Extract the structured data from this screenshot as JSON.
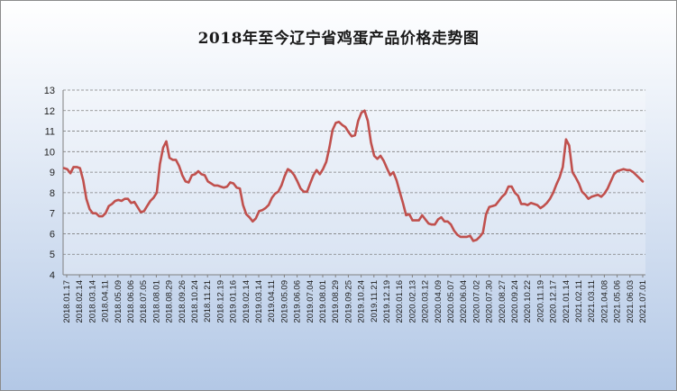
{
  "chart_data": {
    "type": "line",
    "title": "2018年至今辽宁省鸡蛋产品价格走势图",
    "xlabel": "",
    "ylabel": "",
    "ylim": [
      4,
      13
    ],
    "yticks": [
      4,
      5,
      6,
      7,
      8,
      9,
      10,
      11,
      12,
      13
    ],
    "grid": true,
    "legend": "none",
    "line_color": "#c0504d",
    "x_tick_labels": [
      "2018.01.17",
      "2018.02.14",
      "2018.03.14",
      "2018.04.11",
      "2018.05.09",
      "2018.06.06",
      "2018.07.05",
      "2018.08.01",
      "2018.08.29",
      "2018.09.26",
      "2018.10.24",
      "2018.11.21",
      "2018.12.19",
      "2019.01.16",
      "2019.02.14",
      "2019.03.14",
      "2019.04.11",
      "2019.05.09",
      "2019.06.06",
      "2019.07.04",
      "2019.08.01",
      "2019.08.29",
      "2019.09.25",
      "2019.10.24",
      "2019.11.21",
      "2019.12.19",
      "2020.01.16",
      "2020.02.13",
      "2020.03.12",
      "2020.04.09",
      "2020.05.07",
      "2020.06.04",
      "2020.07.02",
      "2020.07.30",
      "2020.08.27",
      "2020.09.24",
      "2020.10.22",
      "2020.11.19",
      "2020.12.17",
      "2021.01.14",
      "2021.02.11",
      "2021.03.11",
      "2021.04.08",
      "2021.05.06",
      "2021.06.03",
      "2021.07.01"
    ],
    "values": [
      9.2,
      9.15,
      8.95,
      9.25,
      9.25,
      9.2,
      8.6,
      7.7,
      7.2,
      7.0,
      7.0,
      6.85,
      6.85,
      7.0,
      7.35,
      7.45,
      7.6,
      7.65,
      7.6,
      7.7,
      7.7,
      7.5,
      7.55,
      7.3,
      7.05,
      7.1,
      7.35,
      7.6,
      7.75,
      8.0,
      9.4,
      10.2,
      10.5,
      9.7,
      9.6,
      9.6,
      9.3,
      8.85,
      8.55,
      8.5,
      8.85,
      8.9,
      9.05,
      8.9,
      8.85,
      8.55,
      8.45,
      8.35,
      8.35,
      8.3,
      8.25,
      8.3,
      8.5,
      8.45,
      8.25,
      8.2,
      7.4,
      6.95,
      6.8,
      6.6,
      6.75,
      7.1,
      7.15,
      7.25,
      7.4,
      7.75,
      7.95,
      8.05,
      8.35,
      8.8,
      9.15,
      9.05,
      8.85,
      8.55,
      8.2,
      8.05,
      8.05,
      8.45,
      8.85,
      9.1,
      8.9,
      9.15,
      9.5,
      10.2,
      11.05,
      11.4,
      11.45,
      11.3,
      11.2,
      10.95,
      10.75,
      10.8,
      11.5,
      11.9,
      12.0,
      11.5,
      10.45,
      9.8,
      9.65,
      9.8,
      9.55,
      9.2,
      8.85,
      9.0,
      8.6,
      8.05,
      7.5,
      6.9,
      6.95,
      6.65,
      6.65,
      6.65,
      6.9,
      6.7,
      6.5,
      6.45,
      6.45,
      6.7,
      6.8,
      6.6,
      6.6,
      6.45,
      6.15,
      5.95,
      5.85,
      5.85,
      5.85,
      5.9,
      5.65,
      5.7,
      5.85,
      6.05,
      6.95,
      7.3,
      7.35,
      7.4,
      7.6,
      7.8,
      7.95,
      8.3,
      8.3,
      8.0,
      7.85,
      7.45,
      7.45,
      7.4,
      7.5,
      7.45,
      7.4,
      7.25,
      7.35,
      7.5,
      7.7,
      8.0,
      8.4,
      8.75,
      9.25,
      10.6,
      10.3,
      9.0,
      8.75,
      8.45,
      8.05,
      7.9,
      7.7,
      7.8,
      7.85,
      7.9,
      7.8,
      7.95,
      8.2,
      8.55,
      8.9,
      9.05,
      9.1,
      9.15,
      9.1,
      9.1,
      9.0,
      8.85,
      8.7,
      8.55
    ]
  }
}
